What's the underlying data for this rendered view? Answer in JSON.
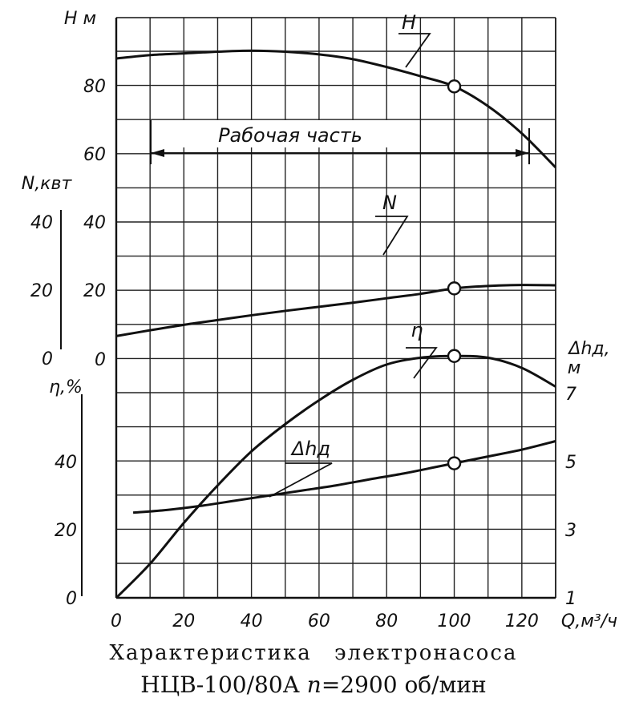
{
  "chart_data": {
    "type": "line",
    "x": {
      "label": "Q,м³/ч",
      "range": [
        0,
        130
      ],
      "ticks": [
        0,
        20,
        40,
        60,
        80,
        100,
        120
      ],
      "tick_labels": [
        "0",
        "20",
        "40",
        "60",
        "80",
        "100",
        "120"
      ]
    },
    "axes": {
      "H": {
        "label": "H м",
        "range": [
          0,
          100
        ],
        "ticks": [
          20,
          40,
          60,
          80
        ],
        "zero_label": "0"
      },
      "N": {
        "label": "N,квт",
        "range": [
          0,
          50
        ],
        "ticks": [
          0,
          20,
          40
        ]
      },
      "eta": {
        "label": "η,%",
        "range": [
          0,
          80
        ],
        "ticks": [
          0,
          20,
          40
        ]
      },
      "dh": {
        "label": "Δhд, м",
        "range": [
          1,
          8
        ],
        "ticks": [
          1,
          3,
          5,
          7
        ]
      }
    },
    "series": [
      {
        "name": "H",
        "axis": "H",
        "x": [
          0,
          10,
          20,
          30,
          40,
          50,
          60,
          70,
          80,
          90,
          100,
          110,
          120,
          130
        ],
        "y": [
          88,
          89,
          89.5,
          90,
          90.3,
          90,
          89.2,
          87.8,
          85.5,
          82.8,
          79.8,
          74,
          66,
          56
        ],
        "marker": {
          "x": 100,
          "y": 79.8
        }
      },
      {
        "name": "N",
        "axis": "N",
        "x": [
          0,
          10,
          20,
          30,
          40,
          50,
          60,
          70,
          80,
          90,
          100,
          110,
          120,
          130
        ],
        "y": [
          6.5,
          8.2,
          9.8,
          11.2,
          12.6,
          13.9,
          15.1,
          16.3,
          17.6,
          18.9,
          20.5,
          21.2,
          21.5,
          21.4
        ],
        "marker": {
          "x": 100,
          "y": 20.5
        }
      },
      {
        "name": "η",
        "axis": "eta",
        "x": [
          0,
          10,
          20,
          30,
          40,
          50,
          60,
          70,
          80,
          90,
          100,
          110,
          120,
          130
        ],
        "y": [
          0,
          10,
          22,
          33,
          43,
          51,
          58,
          64,
          68.5,
          70.5,
          71,
          70.5,
          67.5,
          62
        ],
        "marker": {
          "x": 100,
          "y": 71
        }
      },
      {
        "name": "Δhд",
        "axis": "dh",
        "x": [
          5,
          15,
          25,
          35,
          45,
          55,
          65,
          75,
          85,
          95,
          100,
          110,
          120,
          130
        ],
        "y": [
          3.5,
          3.58,
          3.7,
          3.85,
          4.0,
          4.15,
          4.3,
          4.48,
          4.65,
          4.85,
          4.95,
          5.15,
          5.35,
          5.6
        ],
        "marker": {
          "x": 100,
          "y": 4.95
        }
      }
    ],
    "annotations": {
      "working_range": {
        "label": "Рабочая  часть",
        "from": 10,
        "to": 125
      },
      "curve_labels": {
        "H": "H",
        "N": "N",
        "eta": "η",
        "dh": "Δhд"
      }
    },
    "grid": true
  },
  "caption": {
    "line1": "Характеристика   электронасоса",
    "model": "НЦВ-100/80А",
    "n_symbol": "n",
    "speed": "=2900  об/мин"
  }
}
